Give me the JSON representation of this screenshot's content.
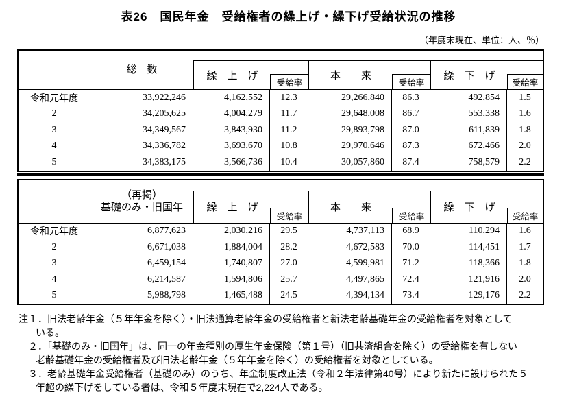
{
  "title": "表26　国民年金　受給権者の繰上げ・繰下げ受給状況の推移",
  "unit_note": "（年度末現在、単位：人、％）",
  "rate_header": "受給率",
  "group_headers": [
    "繰　上　げ",
    "本　　来",
    "繰　下　げ"
  ],
  "tables": [
    {
      "total_header": "総　数",
      "rows": [
        {
          "year": "令和元年度",
          "total": "33,922,246",
          "kuriage": "4,162,552",
          "kuriage_rate": "12.3",
          "honrai": "29,266,840",
          "honrai_rate": "86.3",
          "kurisage": "492,854",
          "kurisage_rate": "1.5"
        },
        {
          "year": "2",
          "total": "34,205,625",
          "kuriage": "4,004,279",
          "kuriage_rate": "11.7",
          "honrai": "29,648,008",
          "honrai_rate": "86.7",
          "kurisage": "553,338",
          "kurisage_rate": "1.6"
        },
        {
          "year": "3",
          "total": "34,349,567",
          "kuriage": "3,843,930",
          "kuriage_rate": "11.2",
          "honrai": "29,893,798",
          "honrai_rate": "87.0",
          "kurisage": "611,839",
          "kurisage_rate": "1.8"
        },
        {
          "year": "4",
          "total": "34,336,782",
          "kuriage": "3,693,670",
          "kuriage_rate": "10.8",
          "honrai": "29,970,646",
          "honrai_rate": "87.3",
          "kurisage": "672,466",
          "kurisage_rate": "2.0"
        },
        {
          "year": "5",
          "total": "34,383,175",
          "kuriage": "3,566,736",
          "kuriage_rate": "10.4",
          "honrai": "30,057,860",
          "honrai_rate": "87.4",
          "kurisage": "758,579",
          "kurisage_rate": "2.2"
        }
      ]
    },
    {
      "total_header_line1": "（再掲）",
      "total_header_line2": "基礎のみ・旧国年",
      "rows": [
        {
          "year": "令和元年度",
          "total": "6,877,623",
          "kuriage": "2,030,216",
          "kuriage_rate": "29.5",
          "honrai": "4,737,113",
          "honrai_rate": "68.9",
          "kurisage": "110,294",
          "kurisage_rate": "1.6"
        },
        {
          "year": "2",
          "total": "6,671,038",
          "kuriage": "1,884,004",
          "kuriage_rate": "28.2",
          "honrai": "4,672,583",
          "honrai_rate": "70.0",
          "kurisage": "114,451",
          "kurisage_rate": "1.7"
        },
        {
          "year": "3",
          "total": "6,459,154",
          "kuriage": "1,740,807",
          "kuriage_rate": "27.0",
          "honrai": "4,599,981",
          "honrai_rate": "71.2",
          "kurisage": "118,366",
          "kurisage_rate": "1.8"
        },
        {
          "year": "4",
          "total": "6,214,587",
          "kuriage": "1,594,806",
          "kuriage_rate": "25.7",
          "honrai": "4,497,865",
          "honrai_rate": "72.4",
          "kurisage": "121,916",
          "kurisage_rate": "2.0"
        },
        {
          "year": "5",
          "total": "5,988,798",
          "kuriage": "1,465,488",
          "kuriage_rate": "24.5",
          "honrai": "4,394,134",
          "honrai_rate": "73.4",
          "kurisage": "129,176",
          "kurisage_rate": "2.2"
        }
      ]
    }
  ],
  "notes": [
    "注１．旧法老齢年金（５年年金を除く）・旧法通算老齢年金の受給権者と新法老齢基礎年金の受給権者を対象として",
    "いる。",
    "２．「基礎のみ・旧国年」は、同一の年金種別の厚生年金保険（第１号）（旧共済組合を除く）の受給権を有しない",
    "老齢基礎年金の受給権者及び旧法老齢年金（５年年金を除く）の受給権者を対象としている。",
    "３．老齢基礎年金受給権者（基礎のみ）のうち、年金制度改正法（令和２年法律第40号）により新たに設けられた５",
    "年超の繰下げをしている者は、令和５年度末現在で2,224人である。"
  ]
}
